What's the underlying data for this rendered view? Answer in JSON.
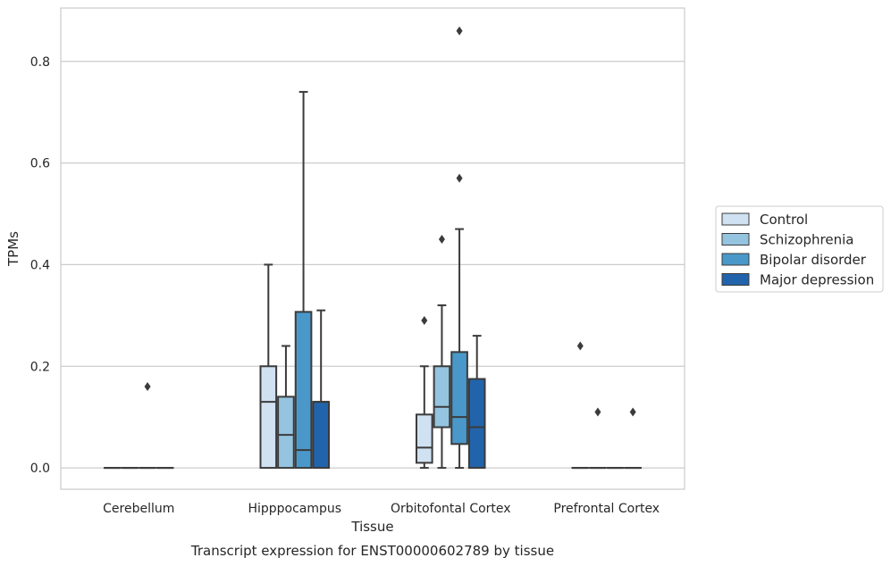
{
  "chart_data": {
    "type": "box",
    "caption": "Transcript expression for ENST00000602789 by tissue",
    "xlabel": "Tissue",
    "ylabel": "TPMs",
    "ylim": [
      -0.042,
      0.905
    ],
    "yticks": [
      0.0,
      0.2,
      0.4,
      0.6,
      0.8
    ],
    "ytick_labels": [
      "0.0",
      "0.2",
      "0.4",
      "0.6",
      "0.8"
    ],
    "grid": true,
    "legend_position": "right",
    "categories": [
      "Cerebellum",
      "Hipppocampus",
      "Orbitofontal Cortex",
      "Prefrontal Cortex"
    ],
    "series": [
      {
        "name": "Control",
        "color": "#d0e1f2",
        "boxes": [
          {
            "min": 0,
            "q1": 0,
            "median": 0,
            "q3": 0,
            "max": 0,
            "outliers": []
          },
          {
            "min": 0,
            "q1": 0,
            "median": 0.13,
            "q3": 0.2,
            "max": 0.4,
            "outliers": []
          },
          {
            "min": 0,
            "q1": 0.01,
            "median": 0.04,
            "q3": 0.105,
            "max": 0.2,
            "outliers": [
              0.29
            ]
          },
          {
            "min": 0,
            "q1": 0,
            "median": 0,
            "q3": 0,
            "max": 0,
            "outliers": [
              0.24
            ]
          }
        ]
      },
      {
        "name": "Schizophrenia",
        "color": "#94c4df",
        "boxes": [
          {
            "min": 0,
            "q1": 0,
            "median": 0,
            "q3": 0,
            "max": 0,
            "outliers": []
          },
          {
            "min": 0,
            "q1": 0,
            "median": 0.065,
            "q3": 0.14,
            "max": 0.24,
            "outliers": []
          },
          {
            "min": 0,
            "q1": 0.08,
            "median": 0.12,
            "q3": 0.2,
            "max": 0.32,
            "outliers": [
              0.45
            ]
          },
          {
            "min": 0,
            "q1": 0,
            "median": 0,
            "q3": 0,
            "max": 0,
            "outliers": [
              0.11
            ]
          }
        ]
      },
      {
        "name": "Bipolar disorder",
        "color": "#4a98c9",
        "boxes": [
          {
            "min": 0,
            "q1": 0,
            "median": 0,
            "q3": 0,
            "max": 0,
            "outliers": [
              0.16
            ]
          },
          {
            "min": 0,
            "q1": 0,
            "median": 0.035,
            "q3": 0.307,
            "max": 0.74,
            "outliers": []
          },
          {
            "min": 0,
            "q1": 0.047,
            "median": 0.1,
            "q3": 0.228,
            "max": 0.47,
            "outliers": [
              0.57,
              0.86
            ]
          },
          {
            "min": 0,
            "q1": 0,
            "median": 0,
            "q3": 0,
            "max": 0,
            "outliers": []
          }
        ]
      },
      {
        "name": "Major depression",
        "color": "#2164ab",
        "boxes": [
          {
            "min": 0,
            "q1": 0,
            "median": 0,
            "q3": 0,
            "max": 0,
            "outliers": []
          },
          {
            "min": 0,
            "q1": 0,
            "median": 0.13,
            "q3": 0.13,
            "max": 0.31,
            "outliers": []
          },
          {
            "min": 0,
            "q1": 0,
            "median": 0.08,
            "q3": 0.175,
            "max": 0.26,
            "outliers": []
          },
          {
            "min": 0,
            "q1": 0,
            "median": 0,
            "q3": 0,
            "max": 0,
            "outliers": [
              0.11
            ]
          }
        ]
      }
    ]
  }
}
